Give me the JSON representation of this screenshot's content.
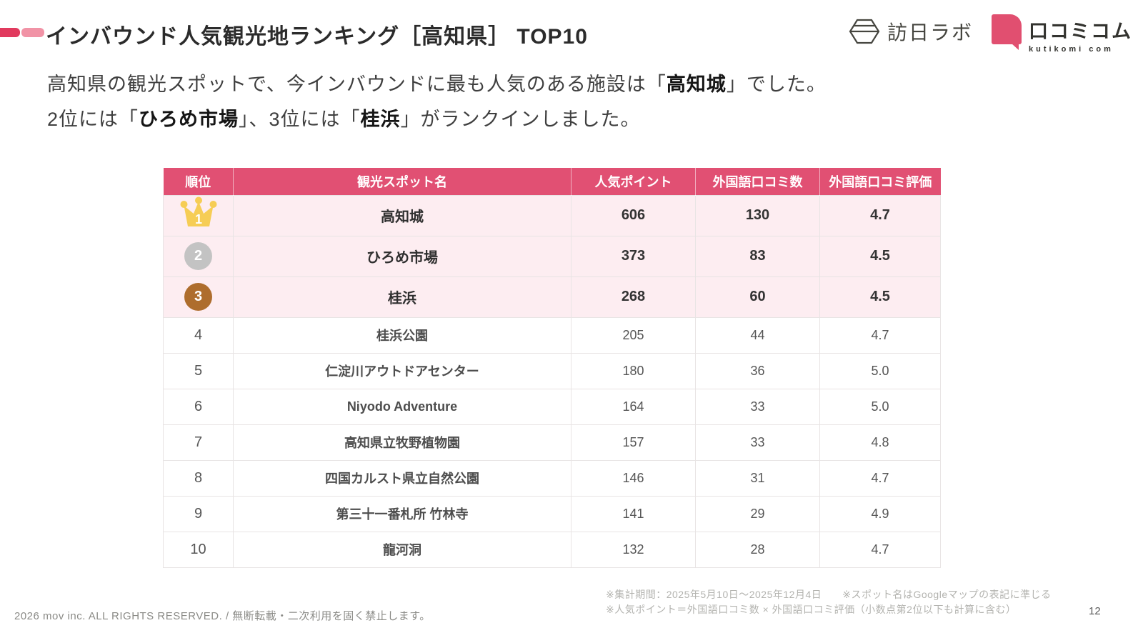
{
  "page": {
    "title": "インバウンド人気観光地ランキング［高知県］ TOP10",
    "page_number": "12"
  },
  "logos": {
    "honichi_lab": "訪日ラボ",
    "kutikomi": "口コミコム",
    "kutikomi_sub": "kutikomi com"
  },
  "intro": {
    "line1_pre": "高知県の観光スポットで、今インバウンドに最も人気のある施設は「",
    "line1_bold": "高知城",
    "line1_post": "」でした。",
    "line2_pre": "2位には「",
    "line2_bold1": "ひろめ市場",
    "line2_mid": "」、3位には「",
    "line2_bold2": "桂浜",
    "line2_post": "」がランクインしました。"
  },
  "table": {
    "headers": [
      "順位",
      "観光スポット名",
      "人気ポイント",
      "外国語口コミ数",
      "外国語口コミ評価"
    ],
    "rows": [
      {
        "rank": "1",
        "name": "高知城",
        "points": "606",
        "reviews": "130",
        "rating": "4.7"
      },
      {
        "rank": "2",
        "name": "ひろめ市場",
        "points": "373",
        "reviews": "83",
        "rating": "4.5"
      },
      {
        "rank": "3",
        "name": "桂浜",
        "points": "268",
        "reviews": "60",
        "rating": "4.5"
      },
      {
        "rank": "4",
        "name": "桂浜公園",
        "points": "205",
        "reviews": "44",
        "rating": "4.7"
      },
      {
        "rank": "5",
        "name": "仁淀川アウトドアセンター",
        "points": "180",
        "reviews": "36",
        "rating": "5.0"
      },
      {
        "rank": "6",
        "name": "Niyodo Adventure",
        "points": "164",
        "reviews": "33",
        "rating": "5.0"
      },
      {
        "rank": "7",
        "name": "高知県立牧野植物園",
        "points": "157",
        "reviews": "33",
        "rating": "4.8"
      },
      {
        "rank": "8",
        "name": "四国カルスト県立自然公園",
        "points": "146",
        "reviews": "31",
        "rating": "4.7"
      },
      {
        "rank": "9",
        "name": "第三十一番札所 竹林寺",
        "points": "141",
        "reviews": "29",
        "rating": "4.9"
      },
      {
        "rank": "10",
        "name": "龍河洞",
        "points": "132",
        "reviews": "28",
        "rating": "4.7"
      }
    ]
  },
  "footnotes": {
    "line1": "※集計期間：2025年5月10日～2025年12月4日　　※スポット名はGoogleマップの表記に準じる",
    "line2": "※人気ポイント＝外国語口コミ数 × 外国語口コミ評価（小数点第2位以下も計算に含む）",
    "copyright": "2026 mov inc. ALL RIGHTS RESERVED. / 無断転載・二次利用を固く禁止します。"
  },
  "colors": {
    "header_bg": "#e15073",
    "top3_bg": "#fdedf1",
    "accent_dark": "#e13a5e",
    "accent_light": "#f193a6",
    "logo_pink": "#e14f70",
    "crown_gold": "#f6cd55",
    "silver": "#c3c3c3",
    "bronze": "#ae6d2d"
  }
}
